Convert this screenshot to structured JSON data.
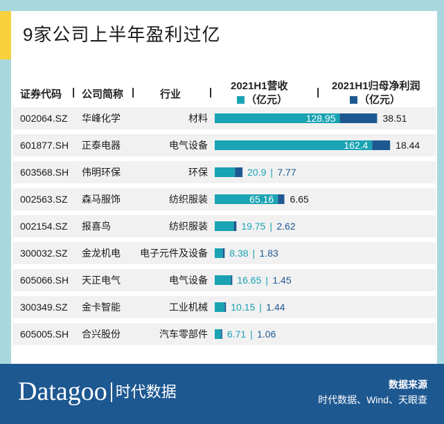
{
  "title": "9家公司上半年盈利过亿",
  "headers": {
    "code": "证券代码",
    "name": "公司简称",
    "industry": "行业",
    "revenue": "2021H1营收",
    "revenue_unit": "（亿元）",
    "profit": "2021H1归母净利润",
    "profit_unit": "（亿元）",
    "separator": "|"
  },
  "colors": {
    "revenue": "#1aa3b3",
    "profit": "#1e5891",
    "row_bg": "#f1f1f1"
  },
  "rows": [
    {
      "code": "002064.SZ",
      "name": "华峰化学",
      "industry": "材料",
      "revenue": "128.95",
      "profit": "38.51"
    },
    {
      "code": "601877.SH",
      "name": "正泰电器",
      "industry": "电气设备",
      "revenue": "162.4",
      "profit": "18.44"
    },
    {
      "code": "603568.SH",
      "name": "伟明环保",
      "industry": "环保",
      "revenue": "20.9",
      "profit": "7.77"
    },
    {
      "code": "002563.SZ",
      "name": "森马服饰",
      "industry": "纺织服装",
      "revenue": "65.16",
      "profit": "6.65"
    },
    {
      "code": "002154.SZ",
      "name": "报喜鸟",
      "industry": "纺织服装",
      "revenue": "19.75",
      "profit": "2.62"
    },
    {
      "code": "300032.SZ",
      "name": "金龙机电",
      "industry": "电子元件及设备",
      "revenue": "8.38",
      "profit": "1.83"
    },
    {
      "code": "605066.SH",
      "name": "天正电气",
      "industry": "电气设备",
      "revenue": "16.65",
      "profit": "1.45"
    },
    {
      "code": "300349.SZ",
      "name": "金卡智能",
      "industry": "工业机械",
      "revenue": "10.15",
      "profit": "1.44"
    },
    {
      "code": "605005.SH",
      "name": "合兴股份",
      "industry": "汽车零部件",
      "revenue": "6.71",
      "profit": "1.06"
    }
  ],
  "chart_data": {
    "type": "bar",
    "orientation": "horizontal",
    "stacked": true,
    "categories": [
      "华峰化学",
      "正泰电器",
      "伟明环保",
      "森马服饰",
      "报喜鸟",
      "金龙机电",
      "天正电气",
      "金卡智能",
      "合兴股份"
    ],
    "series": [
      {
        "name": "2021H1营收",
        "values": [
          128.95,
          162.4,
          20.9,
          65.16,
          19.75,
          8.38,
          16.65,
          10.15,
          6.71
        ]
      },
      {
        "name": "2021H1归母净利润",
        "values": [
          38.51,
          18.44,
          7.77,
          6.65,
          2.62,
          1.83,
          1.45,
          1.44,
          1.06
        ]
      }
    ]
  },
  "footer": {
    "logo": "Datagoo",
    "logo_cn": "时代数据",
    "source_title": "数据来源",
    "source_text": "时代数据、Wind、天眼查"
  }
}
